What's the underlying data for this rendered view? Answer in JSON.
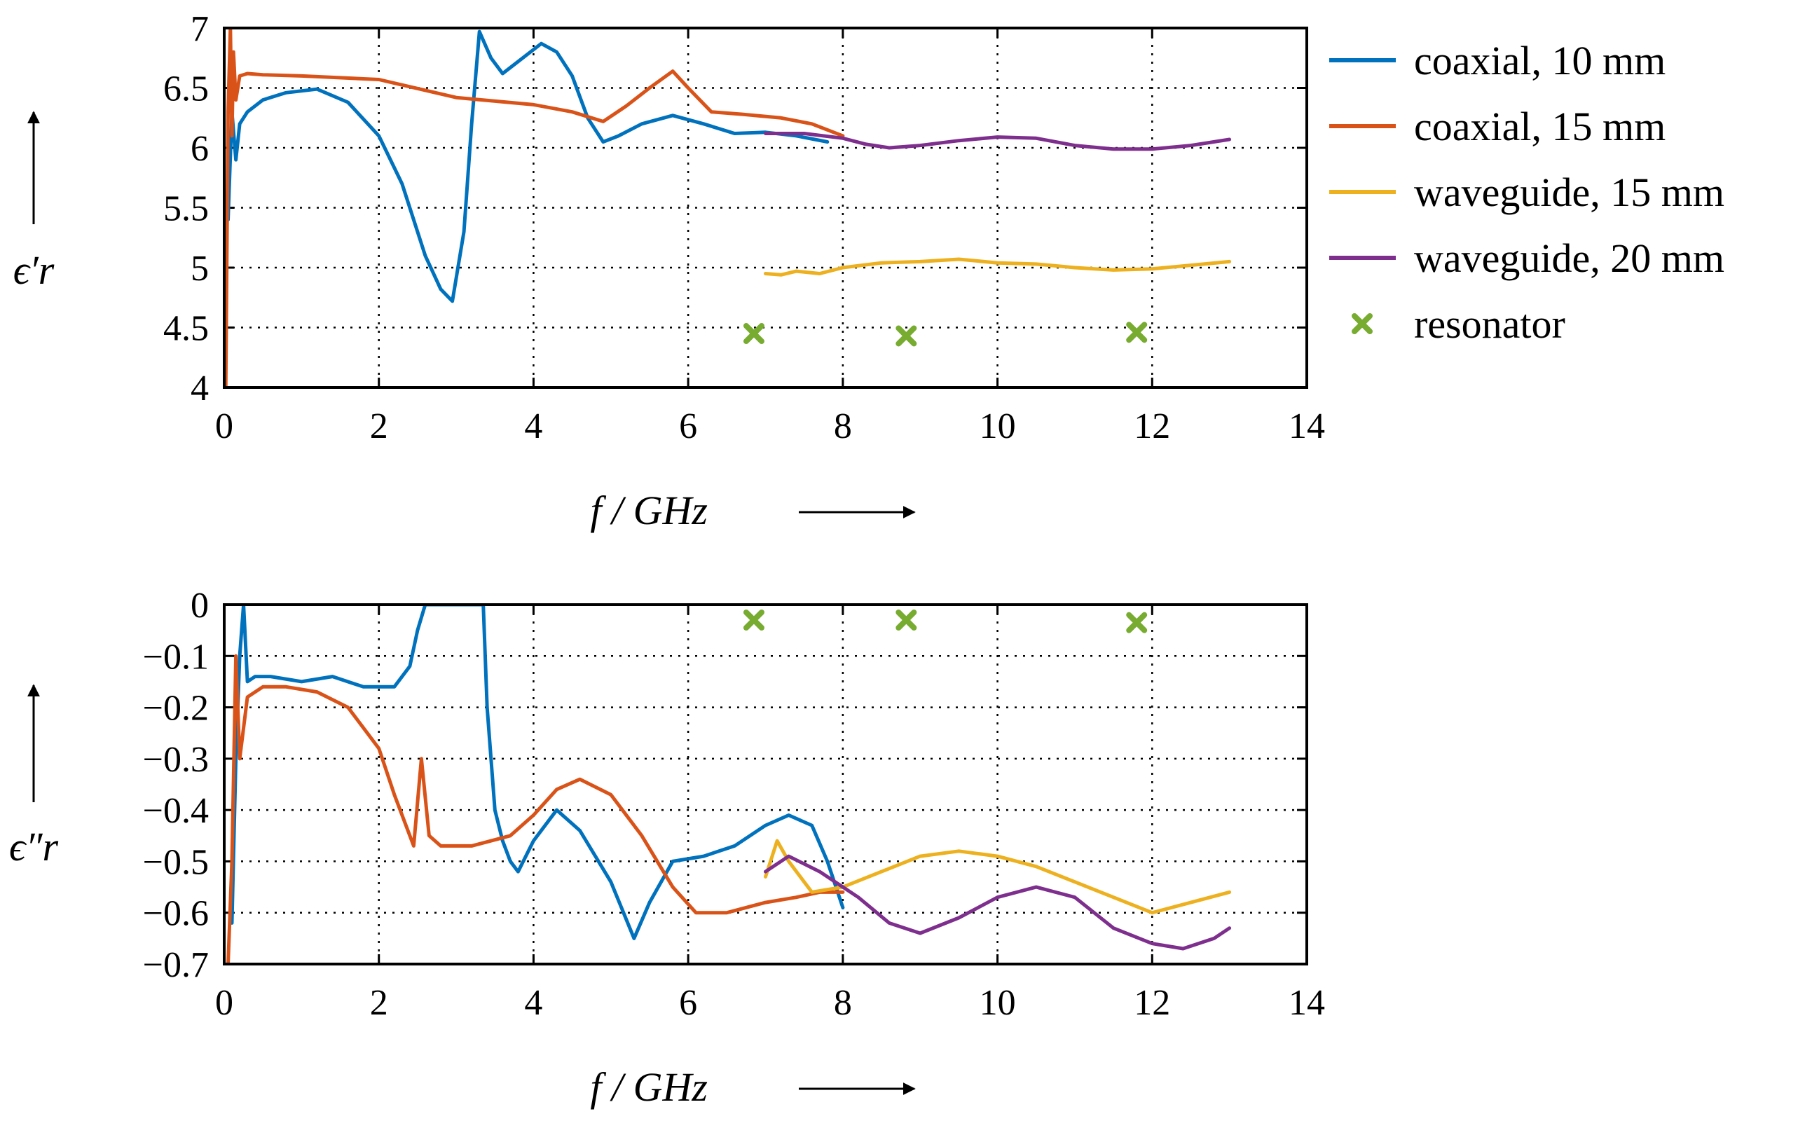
{
  "colors": {
    "coaxial_10": "#0072BD",
    "coaxial_15": "#D95319",
    "waveguide_15": "#EDB120",
    "waveguide_20": "#7E2F8E",
    "resonator": "#77AC30"
  },
  "legend": {
    "entries": [
      "coaxial, 10 mm",
      "coaxial, 15 mm",
      "waveguide, 15 mm",
      "waveguide, 20 mm",
      "resonator"
    ]
  },
  "chart_data": [
    {
      "type": "line",
      "ylabel": "ϵ′r",
      "xlabel": "f / GHz",
      "xlim": [
        0,
        14
      ],
      "ylim": [
        4,
        7
      ],
      "xticks": [
        "0",
        "2",
        "4",
        "6",
        "8",
        "10",
        "12",
        "14"
      ],
      "yticks": [
        "7",
        "6.5",
        "6",
        "5.5",
        "5",
        "4.5",
        "4"
      ],
      "grid": true,
      "legend_position": "right",
      "series": [
        {
          "name": "coaxial, 10 mm",
          "x": [
            0.05,
            0.1,
            0.15,
            0.2,
            0.3,
            0.5,
            0.8,
            1.2,
            1.6,
            2.0,
            2.3,
            2.6,
            2.8,
            2.95,
            3.1,
            3.2,
            3.3,
            3.45,
            3.6,
            3.8,
            4.0,
            4.1,
            4.3,
            4.5,
            4.7,
            4.9,
            5.1,
            5.4,
            5.8,
            6.2,
            6.6,
            7.0,
            7.4,
            7.8
          ],
          "y": [
            5.4,
            6.3,
            5.9,
            6.2,
            6.3,
            6.4,
            6.46,
            6.49,
            6.38,
            6.1,
            5.7,
            5.1,
            4.82,
            4.72,
            5.3,
            6.2,
            6.97,
            6.75,
            6.62,
            6.72,
            6.82,
            6.87,
            6.8,
            6.6,
            6.25,
            6.05,
            6.1,
            6.2,
            6.27,
            6.2,
            6.12,
            6.13,
            6.1,
            6.05
          ]
        },
        {
          "name": "coaxial, 15 mm",
          "x": [
            0.02,
            0.05,
            0.08,
            0.1,
            0.12,
            0.15,
            0.2,
            0.3,
            0.5,
            1.0,
            2.0,
            3.0,
            4.0,
            4.5,
            4.9,
            5.2,
            5.5,
            5.8,
            6.0,
            6.3,
            6.7,
            7.2,
            7.6,
            8.0
          ],
          "y": [
            4.0,
            6.3,
            7.0,
            6.1,
            6.8,
            6.4,
            6.6,
            6.62,
            6.61,
            6.6,
            6.57,
            6.42,
            6.36,
            6.3,
            6.22,
            6.35,
            6.5,
            6.64,
            6.5,
            6.3,
            6.28,
            6.25,
            6.2,
            6.1
          ]
        },
        {
          "name": "waveguide, 15 mm",
          "x": [
            7.0,
            7.2,
            7.4,
            7.7,
            8.0,
            8.5,
            9.0,
            9.5,
            10.0,
            10.5,
            11.0,
            11.5,
            12.0,
            12.5,
            13.0
          ],
          "y": [
            4.95,
            4.94,
            4.97,
            4.95,
            5.0,
            5.04,
            5.05,
            5.07,
            5.04,
            5.03,
            5.0,
            4.98,
            4.99,
            5.02,
            5.05
          ]
        },
        {
          "name": "waveguide, 20 mm",
          "x": [
            7.0,
            7.5,
            8.0,
            8.3,
            8.6,
            9.0,
            9.5,
            10.0,
            10.5,
            11.0,
            11.5,
            12.0,
            12.5,
            13.0
          ],
          "y": [
            6.12,
            6.12,
            6.08,
            6.03,
            6.0,
            6.02,
            6.06,
            6.09,
            6.08,
            6.02,
            5.99,
            5.99,
            6.02,
            6.07
          ]
        },
        {
          "name": "resonator",
          "type": "scatter",
          "x": [
            6.85,
            8.82,
            11.8
          ],
          "y": [
            4.45,
            4.43,
            4.46
          ]
        }
      ]
    },
    {
      "type": "line",
      "ylabel": "ϵ″r",
      "xlabel": "f / GHz",
      "xlim": [
        0,
        14
      ],
      "ylim": [
        -0.7,
        0
      ],
      "xticks": [
        "0",
        "2",
        "4",
        "6",
        "8",
        "10",
        "12",
        "14"
      ],
      "yticks": [
        "0",
        "−0.1",
        "−0.2",
        "−0.3",
        "−0.4",
        "−0.5",
        "−0.6",
        "−0.7"
      ],
      "grid": true,
      "series": [
        {
          "name": "coaxial, 10 mm",
          "x": [
            0.1,
            0.15,
            0.2,
            0.25,
            0.3,
            0.4,
            0.6,
            1.0,
            1.4,
            1.8,
            2.2,
            2.4,
            2.5,
            2.6,
            3.35,
            3.4,
            3.5,
            3.6,
            3.7,
            3.8,
            4.0,
            4.3,
            4.6,
            5.0,
            5.3,
            5.5,
            5.8,
            6.2,
            6.6,
            7.0,
            7.3,
            7.6,
            7.8,
            8.0
          ],
          "y": [
            -0.62,
            -0.3,
            -0.1,
            0.0,
            -0.15,
            -0.14,
            -0.14,
            -0.15,
            -0.14,
            -0.16,
            -0.16,
            -0.12,
            -0.05,
            0.0,
            0.0,
            -0.2,
            -0.4,
            -0.46,
            -0.5,
            -0.52,
            -0.46,
            -0.4,
            -0.44,
            -0.54,
            -0.65,
            -0.58,
            -0.5,
            -0.49,
            -0.47,
            -0.43,
            -0.41,
            -0.43,
            -0.5,
            -0.59
          ]
        },
        {
          "name": "coaxial, 15 mm",
          "x": [
            0.05,
            0.1,
            0.15,
            0.2,
            0.3,
            0.5,
            0.8,
            1.2,
            1.6,
            2.0,
            2.2,
            2.45,
            2.55,
            2.65,
            2.8,
            3.2,
            3.7,
            4.0,
            4.3,
            4.6,
            5.0,
            5.4,
            5.8,
            6.1,
            6.5,
            7.0,
            7.4,
            7.7,
            8.0
          ],
          "y": [
            -0.7,
            -0.5,
            -0.1,
            -0.3,
            -0.18,
            -0.16,
            -0.16,
            -0.17,
            -0.2,
            -0.28,
            -0.37,
            -0.47,
            -0.3,
            -0.45,
            -0.47,
            -0.47,
            -0.45,
            -0.41,
            -0.36,
            -0.34,
            -0.37,
            -0.45,
            -0.55,
            -0.6,
            -0.6,
            -0.58,
            -0.57,
            -0.56,
            -0.56
          ]
        },
        {
          "name": "waveguide, 15 mm",
          "x": [
            7.0,
            7.15,
            7.3,
            7.6,
            8.0,
            8.5,
            9.0,
            9.5,
            10.0,
            10.5,
            11.0,
            11.5,
            12.0,
            12.5,
            13.0
          ],
          "y": [
            -0.53,
            -0.46,
            -0.5,
            -0.56,
            -0.55,
            -0.52,
            -0.49,
            -0.48,
            -0.49,
            -0.51,
            -0.54,
            -0.57,
            -0.6,
            -0.58,
            -0.56
          ]
        },
        {
          "name": "waveguide, 20 mm",
          "x": [
            7.0,
            7.3,
            7.7,
            8.2,
            8.6,
            9.0,
            9.5,
            10.0,
            10.5,
            11.0,
            11.5,
            12.0,
            12.4,
            12.8,
            13.0
          ],
          "y": [
            -0.52,
            -0.49,
            -0.52,
            -0.57,
            -0.62,
            -0.64,
            -0.61,
            -0.57,
            -0.55,
            -0.57,
            -0.63,
            -0.66,
            -0.67,
            -0.65,
            -0.63
          ]
        },
        {
          "name": "resonator",
          "type": "scatter",
          "x": [
            6.85,
            8.82,
            11.8
          ],
          "y": [
            -0.03,
            -0.03,
            -0.035
          ]
        }
      ]
    }
  ]
}
